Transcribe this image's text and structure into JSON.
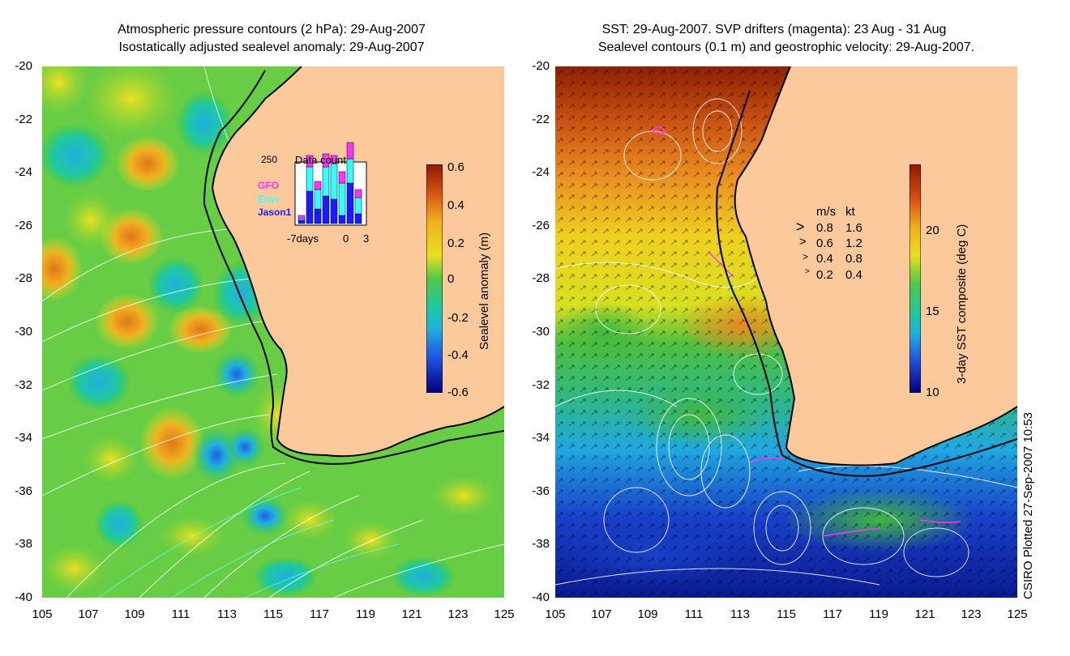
{
  "left_panel": {
    "title_line1": "Atmospheric pressure contours (2 hPa): 29-Aug-2007",
    "title_line2": "Isostatically adjusted sealevel anomaly: 29-Aug-2007",
    "y_ticks": [
      "-20",
      "-22",
      "-24",
      "-26",
      "-28",
      "-30",
      "-32",
      "-34",
      "-36",
      "-38",
      "-40"
    ],
    "x_ticks": [
      "105",
      "107",
      "109",
      "111",
      "113",
      "115",
      "117",
      "119",
      "121",
      "123",
      "125"
    ],
    "colorbar": {
      "label": "Sealevel anomaly (m)",
      "ticks": [
        "0.6",
        "0.4",
        "0.2",
        "0",
        "-0.2",
        "-0.4",
        "-0.6"
      ]
    },
    "inset": {
      "title": "Data count",
      "ymax": "250",
      "legend": [
        "GFO",
        "Envi",
        "Jason1"
      ],
      "legend_colors": [
        "#ff33ff",
        "#33ffff",
        "#1a1aff"
      ],
      "xlabel_left": "-7days",
      "xlabel_mid": "0",
      "xlabel_right": "3"
    }
  },
  "right_panel": {
    "title_line1": "SST: 29-Aug-2007. SVP drifters (magenta): 23 Aug - 31 Aug",
    "title_line2": "Sealevel contours (0.1 m) and geostrophic velocity: 29-Aug-2007.",
    "y_ticks": [
      "-20",
      "-22",
      "-24",
      "-26",
      "-28",
      "-30",
      "-32",
      "-34",
      "-36",
      "-38",
      "-40"
    ],
    "x_ticks": [
      "105",
      "107",
      "109",
      "111",
      "113",
      "115",
      "117",
      "119",
      "121",
      "123",
      "125"
    ],
    "colorbar": {
      "label": "3-day SST composite (deg C)",
      "ticks": [
        "20",
        "15",
        "10"
      ]
    },
    "velocity_legend": {
      "header_ms": "m/s",
      "header_kt": "kt",
      "rows": [
        {
          "ms": "0.8",
          "kt": "1.6"
        },
        {
          "ms": "0.6",
          "kt": "1.2"
        },
        {
          "ms": "0.4",
          "kt": "0.8"
        },
        {
          "ms": "0.2",
          "kt": "0.4"
        }
      ]
    }
  },
  "footer": {
    "plotted": "CSIRO Plotted 27-Sep-2007 10:53"
  },
  "colors": {
    "land": "#fcc99b",
    "coast": "#000000"
  }
}
